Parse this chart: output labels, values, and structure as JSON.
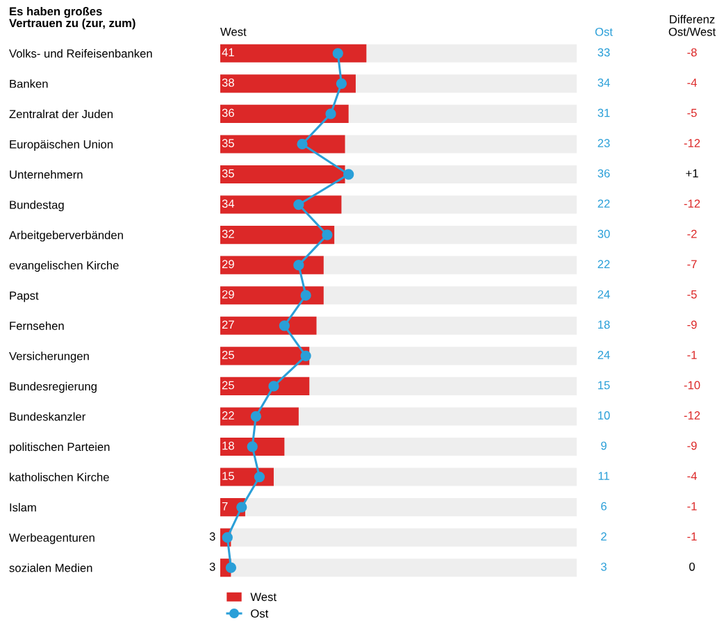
{
  "chart_data": {
    "type": "bar",
    "orientation": "horizontal",
    "title": "Es haben großes\nVertrauen zu (zur, zum)",
    "categories": [
      "Volks- und Reifeisenbanken",
      "Banken",
      "Zentralrat der Juden",
      "Europäischen Union",
      "Unternehmern",
      "Bundestag",
      "Arbeitgeberverbänden",
      "evangelischen Kirche",
      "Papst",
      "Fernsehen",
      "Versicherungen",
      "Bundesregierung",
      "Bundeskanzler",
      "politischen Parteien",
      "katholischen Kirche",
      "Islam",
      "Werbeagenturen",
      "sozialen Medien"
    ],
    "series": [
      {
        "name": "West",
        "color": "#dc2828",
        "values": [
          41,
          38,
          36,
          35,
          35,
          34,
          32,
          29,
          29,
          27,
          25,
          25,
          22,
          18,
          15,
          7,
          3,
          3
        ]
      },
      {
        "name": "Ost",
        "type": "line",
        "color": "#2a9fd8",
        "values": [
          33,
          34,
          31,
          23,
          36,
          22,
          30,
          22,
          24,
          18,
          24,
          15,
          10,
          9,
          11,
          6,
          2,
          3
        ]
      }
    ],
    "annotations": [
      "West",
      "Ost",
      "Differenz\nOst/West",
      "-8",
      "-4",
      "-5",
      "-12",
      "+1",
      "-12",
      "-2",
      "-7",
      "-5",
      "-9",
      "-1",
      "-10",
      "-12",
      "-9",
      "-4",
      "-1",
      "-1",
      "0"
    ],
    "xlim": [
      0,
      100
    ],
    "data_labels": true,
    "marker": "circle",
    "line_style": "solid",
    "legend": "bottom",
    "tick_labels": "y",
    "grid": false
  }
}
